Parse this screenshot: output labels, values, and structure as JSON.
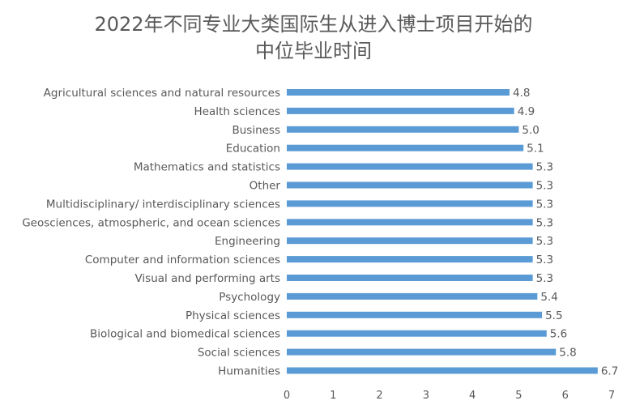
{
  "chart_data": {
    "type": "bar",
    "orientation": "horizontal",
    "title_lines": [
      "2022年不同专业大类国际生从进入博士项目开始的",
      "中位毕业时间"
    ],
    "xlabel": "",
    "ylabel": "",
    "xlim": [
      0,
      7
    ],
    "x_ticks": [
      0,
      1,
      2,
      3,
      4,
      5,
      6,
      7
    ],
    "grid": false,
    "legend": "none",
    "bar_color": "#5B9BD5",
    "label_color": "#595959",
    "categories": [
      "Agricultural sciences and natural resources",
      "Health sciences",
      "Business",
      "Education",
      "Mathematics and statistics",
      "Other",
      "Multidisciplinary/ interdisciplinary sciences",
      "Geosciences, atmospheric, and ocean sciences",
      "Engineering",
      "Computer and information sciences",
      "Visual and performing arts",
      "Psychology",
      "Physical sciences",
      "Biological and biomedical sciences",
      "Social sciences",
      "Humanities"
    ],
    "values": [
      4.8,
      4.9,
      5.0,
      5.1,
      5.3,
      5.3,
      5.3,
      5.3,
      5.3,
      5.3,
      5.3,
      5.4,
      5.5,
      5.6,
      5.8,
      6.7
    ],
    "value_labels": [
      "4.8",
      "4.9",
      "5.0",
      "5.1",
      "5.3",
      "5.3",
      "5.3",
      "5.3",
      "5.3",
      "5.3",
      "5.3",
      "5.4",
      "5.5",
      "5.6",
      "5.8",
      "6.7"
    ]
  }
}
